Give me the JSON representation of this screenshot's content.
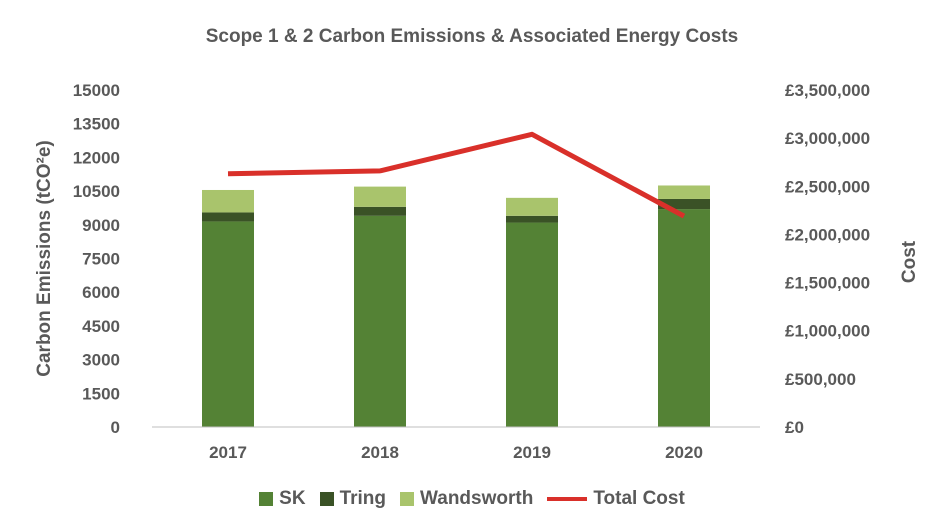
{
  "chart_data": {
    "type": "bar",
    "title": "Scope 1 & 2 Carbon Emissions & Associated Energy Costs",
    "categories": [
      "2017",
      "2018",
      "2019",
      "2020"
    ],
    "stacked": true,
    "series": [
      {
        "name": "SK",
        "type": "bar",
        "axis": "left",
        "color": "#548235",
        "values": [
          9150,
          9400,
          9100,
          9700
        ]
      },
      {
        "name": "Tring",
        "type": "bar",
        "axis": "left",
        "color": "#3a5226",
        "values": [
          400,
          400,
          300,
          450
        ]
      },
      {
        "name": "Wandsworth",
        "type": "bar",
        "axis": "left",
        "color": "#a9c46c",
        "values": [
          1000,
          900,
          800,
          600
        ]
      },
      {
        "name": "Total Cost",
        "type": "line",
        "axis": "right",
        "color": "#d9302a",
        "values": [
          2630000,
          2660000,
          3040000,
          2190000
        ]
      }
    ],
    "ylabel": "Carbon Emissions (tCO²e)",
    "ylabel_right": "Cost",
    "ylim": [
      0,
      15000
    ],
    "yticks": [
      "0",
      "1500",
      "3000",
      "4500",
      "6000",
      "7500",
      "9000",
      "10500",
      "12000",
      "13500",
      "15000"
    ],
    "ylim_right": [
      0,
      3500000
    ],
    "yticks_right": [
      "£0",
      "£500,000",
      "£1,000,000",
      "£1,500,000",
      "£2,000,000",
      "£2,500,000",
      "£3,000,000",
      "£3,500,000"
    ],
    "grid": false,
    "legend_position": "bottom"
  }
}
